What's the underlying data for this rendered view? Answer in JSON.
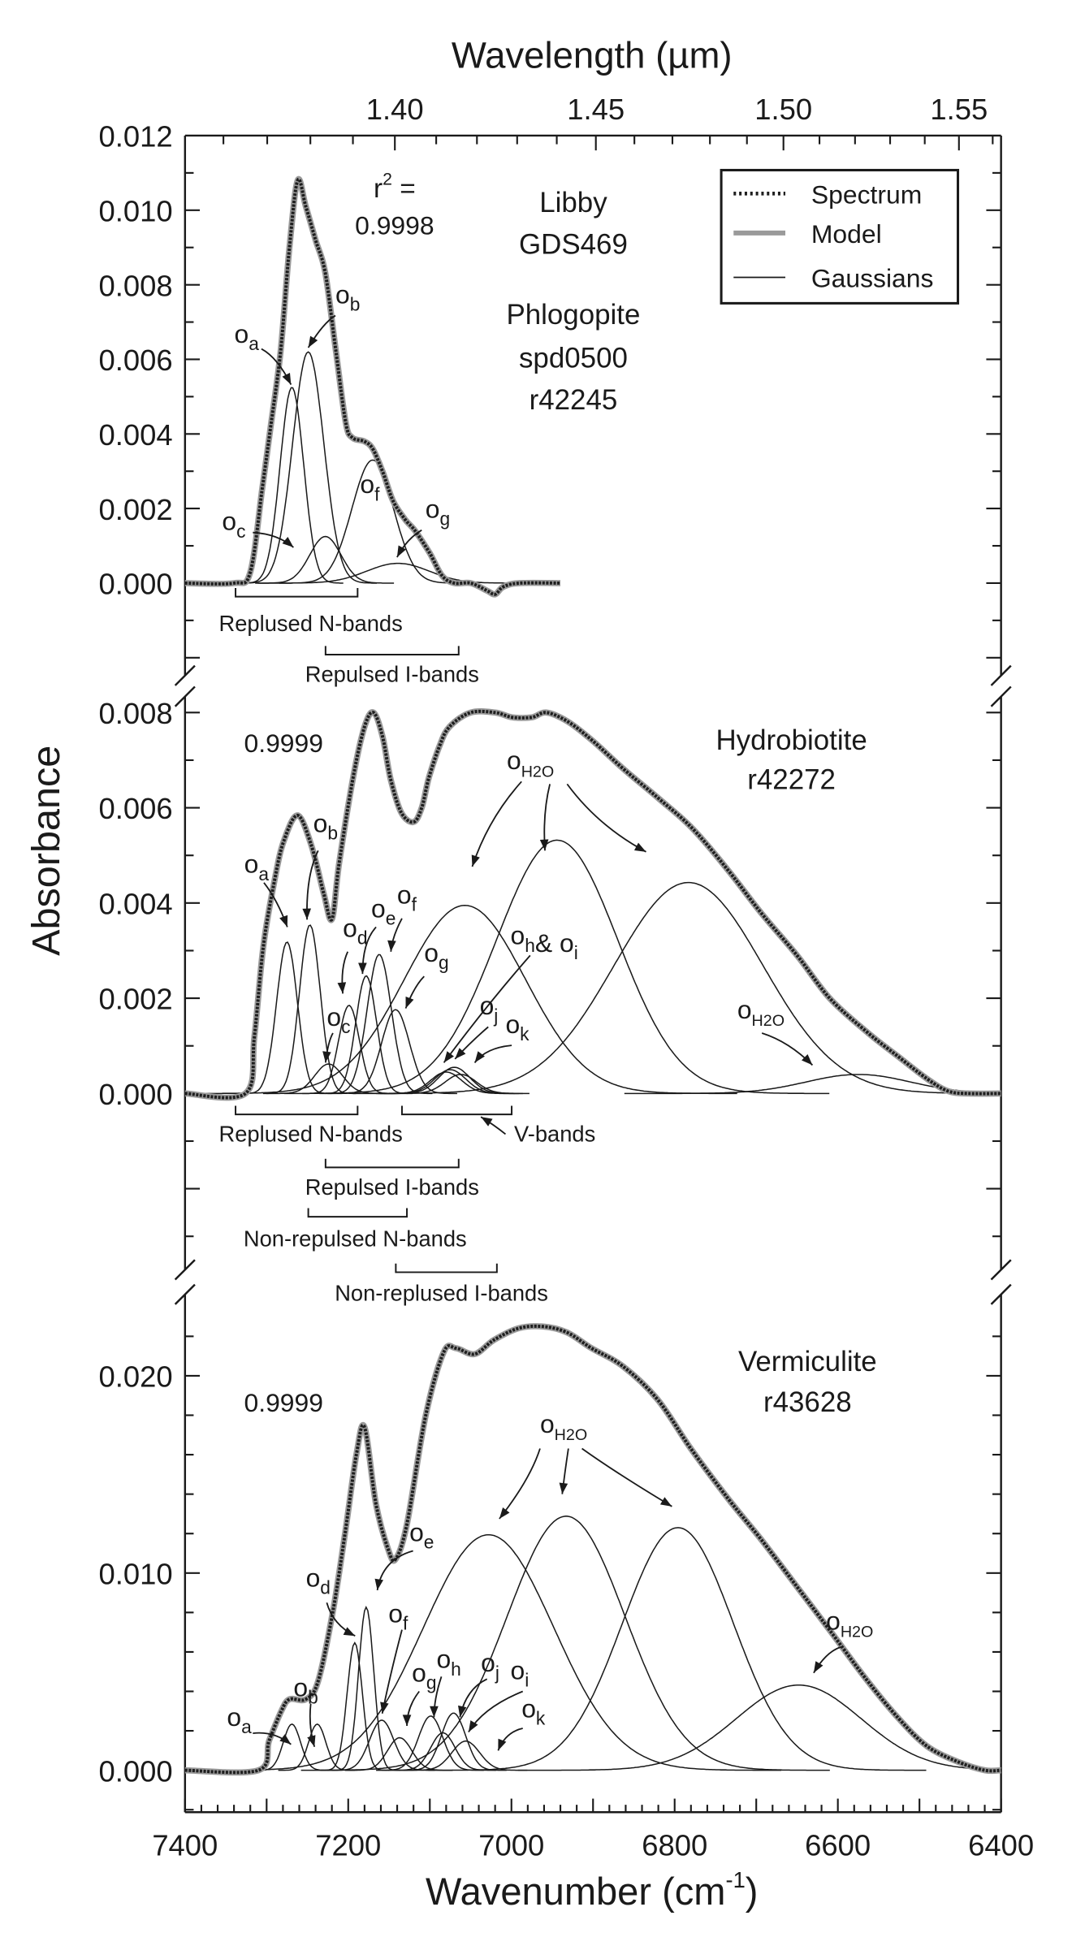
{
  "figure": {
    "top_axis_title": "Wavelength (µm)",
    "top_axis_ticks": [
      "1.40",
      "1.45",
      "1.50",
      "1.55"
    ],
    "y_axis_title": "Absorbance",
    "x_axis_title_main": "Wavenumber (cm",
    "x_axis_title_sup": "-1",
    "x_axis_title_end": ")",
    "x_ticks": [
      "7400",
      "7200",
      "7000",
      "6800",
      "6600",
      "6400"
    ]
  },
  "legend": {
    "placement": "top-right",
    "items": [
      {
        "label": "Spectrum",
        "style": "dotted",
        "color": "#1e1e1e"
      },
      {
        "label": "Model",
        "style": "thick",
        "color": "#9a9a9a"
      },
      {
        "label": "Gaussians",
        "style": "thin",
        "color": "#1a1a1a"
      }
    ]
  },
  "chart_data": [
    {
      "type": "line",
      "xlabel": "Wavenumber (cm-1)",
      "ylabel": "Absorbance",
      "xlim": [
        7400,
        6400
      ],
      "ylim": [
        -0.0025,
        0.012
      ],
      "ytick_labels": [
        "0.000",
        "0.002",
        "0.004",
        "0.006",
        "0.008",
        "0.010",
        "0.012"
      ],
      "r2_label": "r",
      "r2_sup": "2",
      "r2_eq": " =",
      "r2": "0.9998",
      "sample_lines": [
        "Libby",
        "GDS469",
        "Phlogopite",
        "spd0500",
        "r42245"
      ],
      "spectrum": [
        [
          7400,
          0
        ],
        [
          7340,
          0
        ],
        [
          7320,
          0.0003
        ],
        [
          7305,
          0.0026
        ],
        [
          7295,
          0.0042
        ],
        [
          7283,
          0.0062
        ],
        [
          7272,
          0.009
        ],
        [
          7262,
          0.0108
        ],
        [
          7252,
          0.0101
        ],
        [
          7240,
          0.0092
        ],
        [
          7228,
          0.0083
        ],
        [
          7215,
          0.0062
        ],
        [
          7203,
          0.0043
        ],
        [
          7195,
          0.0039
        ],
        [
          7180,
          0.0038
        ],
        [
          7170,
          0.0036
        ],
        [
          7158,
          0.003
        ],
        [
          7145,
          0.0022
        ],
        [
          7130,
          0.0017
        ],
        [
          7118,
          0.0014
        ],
        [
          7100,
          0.0008
        ],
        [
          7085,
          0.0002
        ],
        [
          7070,
          0
        ],
        [
          7050,
          0
        ],
        [
          7030,
          -0.0002
        ],
        [
          7020,
          -0.0003
        ],
        [
          7010,
          -0.0001
        ],
        [
          6990,
          0
        ],
        [
          6940,
          0
        ]
      ],
      "gaussians": [
        {
          "label": "a",
          "center": 7269,
          "height": 0.00525,
          "fwhm": 34
        },
        {
          "label": "b",
          "center": 7249,
          "height": 0.0062,
          "fwhm": 45
        },
        {
          "label": "c",
          "center": 7228,
          "height": 0.00125,
          "fwhm": 45
        },
        {
          "label": "f",
          "center": 7170,
          "height": 0.0033,
          "fwhm": 60
        },
        {
          "label": "g",
          "center": 7139,
          "height": 0.00053,
          "fwhm": 90
        }
      ],
      "annotations": [
        [
          [
            "o",
            "a"
          ]
        ],
        [
          [
            "o",
            "b"
          ]
        ],
        [
          [
            "o",
            "c"
          ]
        ],
        [
          [
            "o",
            "f"
          ]
        ],
        [
          [
            "o",
            "g"
          ]
        ]
      ],
      "bands": [
        "Replused N-bands",
        "Repulsed I-bands"
      ]
    },
    {
      "type": "line",
      "xlabel": "Wavenumber (cm-1)",
      "ylabel": "Absorbance",
      "xlim": [
        7400,
        6400
      ],
      "ylim": [
        -0.004,
        0.0086
      ],
      "ytick_labels": [
        "0.000",
        "0.002",
        "0.004",
        "0.006",
        "0.008"
      ],
      "r2": "0.9999",
      "sample_lines": [
        "Hydrobiotite",
        "r42272"
      ],
      "spectrum": [
        [
          7400,
          0
        ],
        [
          7326,
          0
        ],
        [
          7315,
          0.0012
        ],
        [
          7304,
          0.0031
        ],
        [
          7290,
          0.0045
        ],
        [
          7279,
          0.0053
        ],
        [
          7262,
          0.00584
        ],
        [
          7245,
          0.0052
        ],
        [
          7230,
          0.0042
        ],
        [
          7220,
          0.00366
        ],
        [
          7211,
          0.00485
        ],
        [
          7194,
          0.00664
        ],
        [
          7180,
          0.0077
        ],
        [
          7169,
          0.008
        ],
        [
          7158,
          0.0075
        ],
        [
          7148,
          0.0066
        ],
        [
          7135,
          0.0059
        ],
        [
          7120,
          0.0057
        ],
        [
          7110,
          0.006
        ],
        [
          7101,
          0.00664
        ],
        [
          7088,
          0.0073
        ],
        [
          7076,
          0.0077
        ],
        [
          7050,
          0.008
        ],
        [
          7020,
          0.008
        ],
        [
          6999,
          0.0079
        ],
        [
          6975,
          0.0079
        ],
        [
          6957,
          0.008
        ],
        [
          6930,
          0.0078
        ],
        [
          6900,
          0.0074
        ],
        [
          6863,
          0.00682
        ],
        [
          6820,
          0.0062
        ],
        [
          6779,
          0.00558
        ],
        [
          6735,
          0.0047
        ],
        [
          6694,
          0.00379
        ],
        [
          6650,
          0.0029
        ],
        [
          6610,
          0.002
        ],
        [
          6565,
          0.0013
        ],
        [
          6525,
          0.00076
        ],
        [
          6490,
          0.0003
        ],
        [
          6465,
          5e-05
        ],
        [
          6440,
          0
        ],
        [
          6400,
          0
        ]
      ],
      "gaussians": [
        {
          "label": "a",
          "center": 7275,
          "height": 0.00318,
          "fwhm": 30
        },
        {
          "label": "b",
          "center": 7247,
          "height": 0.00354,
          "fwhm": 30
        },
        {
          "label": "c",
          "center": 7224,
          "height": 0.00062,
          "fwhm": 40
        },
        {
          "label": "d",
          "center": 7199,
          "height": 0.00185,
          "fwhm": 30
        },
        {
          "label": "e",
          "center": 7178,
          "height": 0.00247,
          "fwhm": 30
        },
        {
          "label": "f",
          "center": 7162,
          "height": 0.00292,
          "fwhm": 35
        },
        {
          "label": "g",
          "center": 7142,
          "height": 0.00176,
          "fwhm": 40
        },
        {
          "label": "h",
          "center": 7080,
          "height": 0.00045,
          "fwhm": 45
        },
        {
          "label": "i",
          "center": 7075,
          "height": 0.0005,
          "fwhm": 45
        },
        {
          "label": "j",
          "center": 7070,
          "height": 0.00055,
          "fwhm": 45
        },
        {
          "label": "k",
          "center": 7062,
          "height": 0.0004,
          "fwhm": 45
        },
        {
          "label": "H2O",
          "center": 7057,
          "height": 0.00395,
          "fwhm": 175
        },
        {
          "label": "H2O",
          "center": 6944,
          "height": 0.00532,
          "fwhm": 175
        },
        {
          "label": "H2O",
          "center": 6783,
          "height": 0.00443,
          "fwhm": 215
        },
        {
          "label": "H2O",
          "center": 6575,
          "height": 0.0004,
          "fwhm": 150
        }
      ],
      "annotations": [
        [
          [
            "o",
            "a"
          ]
        ],
        [
          [
            "o",
            "b"
          ]
        ],
        [
          [
            "o",
            "c"
          ]
        ],
        [
          [
            "o",
            "d"
          ]
        ],
        [
          [
            "o",
            "e"
          ]
        ],
        [
          [
            "o",
            "f"
          ]
        ],
        [
          [
            "o",
            "g"
          ]
        ],
        [
          [
            "o",
            "h"
          ],
          [
            "& o",
            "i"
          ]
        ],
        [
          [
            "o",
            "j"
          ]
        ],
        [
          [
            "o",
            "k"
          ]
        ],
        [
          [
            "o",
            "H2O"
          ]
        ],
        [
          [
            "o",
            "H2O"
          ]
        ]
      ],
      "bands": [
        "Replused N-bands",
        "V-bands",
        "Repulsed I-bands",
        "Non-repulsed N-bands",
        "Non-replused I-bands"
      ]
    },
    {
      "type": "line",
      "xlabel": "Wavenumber (cm-1)",
      "ylabel": "Absorbance",
      "xlim": [
        7400,
        6400
      ],
      "ylim": [
        -0.0021,
        0.0238
      ],
      "ytick_labels": [
        "0.000",
        "0.010",
        "0.020"
      ],
      "r2": "0.9999",
      "sample_lines": [
        "Vermiculite",
        "r43628"
      ],
      "spectrum": [
        [
          7400,
          0
        ],
        [
          7310,
          0
        ],
        [
          7297,
          0.0015
        ],
        [
          7282,
          0.003
        ],
        [
          7272,
          0.0036
        ],
        [
          7252,
          0.0036
        ],
        [
          7237,
          0.0045
        ],
        [
          7219,
          0.008
        ],
        [
          7204,
          0.012
        ],
        [
          7190,
          0.016
        ],
        [
          7180,
          0.0174
        ],
        [
          7166,
          0.0135
        ],
        [
          7151,
          0.0112
        ],
        [
          7142,
          0.0107
        ],
        [
          7128,
          0.0125
        ],
        [
          7105,
          0.018
        ],
        [
          7083,
          0.0212
        ],
        [
          7068,
          0.0214
        ],
        [
          7045,
          0.0211
        ],
        [
          7022,
          0.0218
        ],
        [
          6992,
          0.0224
        ],
        [
          6962,
          0.0225
        ],
        [
          6932,
          0.0222
        ],
        [
          6902,
          0.0214
        ],
        [
          6864,
          0.0205
        ],
        [
          6821,
          0.0188
        ],
        [
          6780,
          0.0163
        ],
        [
          6735,
          0.0138
        ],
        [
          6694,
          0.0117
        ],
        [
          6650,
          0.0093
        ],
        [
          6610,
          0.0071
        ],
        [
          6565,
          0.0046
        ],
        [
          6525,
          0.0026
        ],
        [
          6490,
          0.0012
        ],
        [
          6451,
          0.0004
        ],
        [
          6420,
          0
        ],
        [
          6400,
          0
        ]
      ],
      "gaussians": [
        {
          "label": "a",
          "center": 7269,
          "height": 0.00234,
          "fwhm": 25
        },
        {
          "label": "b",
          "center": 7238,
          "height": 0.00234,
          "fwhm": 25
        },
        {
          "label": "d",
          "center": 7192,
          "height": 0.00646,
          "fwhm": 22
        },
        {
          "label": "e",
          "center": 7178,
          "height": 0.00827,
          "fwhm": 22
        },
        {
          "label": "f",
          "center": 7159,
          "height": 0.00254,
          "fwhm": 35
        },
        {
          "label": "g",
          "center": 7137,
          "height": 0.00165,
          "fwhm": 35
        },
        {
          "label": "h",
          "center": 7099,
          "height": 0.00275,
          "fwhm": 35
        },
        {
          "label": "i",
          "center": 7084,
          "height": 0.0019,
          "fwhm": 35
        },
        {
          "label": "j",
          "center": 7071,
          "height": 0.0029,
          "fwhm": 35
        },
        {
          "label": "k",
          "center": 7056,
          "height": 0.00148,
          "fwhm": 40
        },
        {
          "label": "H2O",
          "center": 7028,
          "height": 0.01194,
          "fwhm": 188
        },
        {
          "label": "H2O",
          "center": 6933,
          "height": 0.01288,
          "fwhm": 170
        },
        {
          "label": "H2O",
          "center": 6796,
          "height": 0.0123,
          "fwhm": 160
        },
        {
          "label": "H2O",
          "center": 6648,
          "height": 0.00432,
          "fwhm": 180
        }
      ],
      "annotations": [
        [
          [
            "o",
            "a"
          ]
        ],
        [
          [
            "o",
            "b"
          ]
        ],
        [
          [
            "o",
            "d"
          ]
        ],
        [
          [
            "o",
            "e"
          ]
        ],
        [
          [
            "o",
            "f"
          ]
        ],
        [
          [
            "o",
            "g"
          ]
        ],
        [
          [
            "o",
            "h"
          ]
        ],
        [
          [
            "o",
            "j"
          ]
        ],
        [
          [
            "o",
            "i"
          ]
        ],
        [
          [
            "o",
            "k"
          ]
        ],
        [
          [
            "o",
            "H2O"
          ]
        ],
        [
          [
            "o",
            "H2O"
          ]
        ]
      ],
      "bands": []
    }
  ]
}
